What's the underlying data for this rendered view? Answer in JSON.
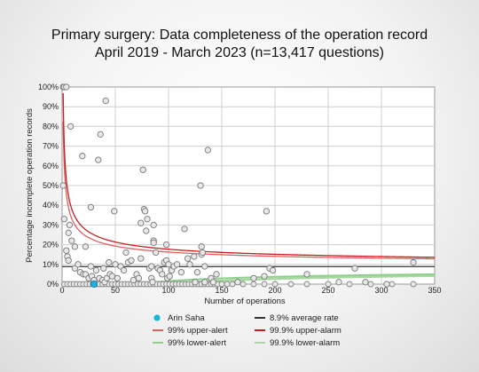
{
  "chart_data": {
    "type": "scatter",
    "title": "Primary surgery: Data completeness of the operation record",
    "subtitle": "April 2019 - March 2023 (n=13,417 questions)",
    "xlabel": "Number of operations",
    "ylabel": "Percentage incomplete operation records",
    "xlim": [
      0,
      350
    ],
    "ylim": [
      0,
      100
    ],
    "xticks": [
      "0",
      "50",
      "100",
      "150",
      "200",
      "250",
      "300",
      "350"
    ],
    "yticks": [
      "0%",
      "10%",
      "20%",
      "30%",
      "40%",
      "50%",
      "60%",
      "70%",
      "80%",
      "90%",
      "100%"
    ],
    "grid": true,
    "legend_position": "bottom",
    "average_rate": 8.9,
    "highlight_point": {
      "name": "Arin Saha",
      "x": 30,
      "y": 0
    },
    "points": [
      [
        1,
        100
      ],
      [
        2,
        100
      ],
      [
        4,
        100
      ],
      [
        1,
        50
      ],
      [
        2,
        33
      ],
      [
        4,
        17
      ],
      [
        5,
        14
      ],
      [
        6,
        12
      ],
      [
        6,
        26
      ],
      [
        7,
        30
      ],
      [
        8,
        80
      ],
      [
        9,
        22
      ],
      [
        12,
        19
      ],
      [
        12,
        8
      ],
      [
        15,
        10
      ],
      [
        17,
        6
      ],
      [
        19,
        65
      ],
      [
        20,
        5
      ],
      [
        22,
        5
      ],
      [
        22,
        19
      ],
      [
        25,
        3
      ],
      [
        27,
        9
      ],
      [
        27,
        39
      ],
      [
        28,
        4
      ],
      [
        30,
        2
      ],
      [
        32,
        7
      ],
      [
        34,
        63
      ],
      [
        35,
        3
      ],
      [
        36,
        76
      ],
      [
        38,
        2
      ],
      [
        39,
        8
      ],
      [
        40,
        1
      ],
      [
        41,
        93
      ],
      [
        42,
        3
      ],
      [
        44,
        11
      ],
      [
        45,
        5
      ],
      [
        47,
        4
      ],
      [
        49,
        37
      ],
      [
        50,
        10
      ],
      [
        52,
        3
      ],
      [
        55,
        9
      ],
      [
        58,
        7
      ],
      [
        60,
        16
      ],
      [
        62,
        11
      ],
      [
        65,
        12
      ],
      [
        67,
        2
      ],
      [
        70,
        5
      ],
      [
        72,
        3
      ],
      [
        74,
        31
      ],
      [
        74,
        13
      ],
      [
        76,
        58
      ],
      [
        77,
        38
      ],
      [
        78,
        37
      ],
      [
        79,
        27
      ],
      [
        80,
        33
      ],
      [
        82,
        8
      ],
      [
        84,
        3
      ],
      [
        84,
        9
      ],
      [
        85,
        1
      ],
      [
        86,
        30
      ],
      [
        86,
        22
      ],
      [
        86,
        21
      ],
      [
        88,
        16
      ],
      [
        90,
        8
      ],
      [
        92,
        7
      ],
      [
        94,
        5
      ],
      [
        96,
        11
      ],
      [
        98,
        12
      ],
      [
        98,
        20
      ],
      [
        99,
        3
      ],
      [
        100,
        10
      ],
      [
        101,
        4
      ],
      [
        103,
        7
      ],
      [
        105,
        9
      ],
      [
        108,
        10
      ],
      [
        112,
        6
      ],
      [
        115,
        28
      ],
      [
        118,
        13
      ],
      [
        120,
        10
      ],
      [
        124,
        14
      ],
      [
        125,
        1
      ],
      [
        127,
        6
      ],
      [
        130,
        50
      ],
      [
        131,
        19
      ],
      [
        131,
        15
      ],
      [
        132,
        16
      ],
      [
        134,
        9
      ],
      [
        134,
        1
      ],
      [
        137,
        68
      ],
      [
        140,
        3
      ],
      [
        142,
        1
      ],
      [
        145,
        5
      ],
      [
        165,
        1
      ],
      [
        180,
        3
      ],
      [
        190,
        4
      ],
      [
        192,
        37
      ],
      [
        195,
        8
      ],
      [
        198,
        7
      ],
      [
        230,
        5
      ],
      [
        260,
        1
      ],
      [
        275,
        8
      ],
      [
        285,
        1
      ],
      [
        305,
        0
      ],
      [
        330,
        11
      ]
    ],
    "low_points_x": [
      2,
      5,
      8,
      11,
      14,
      17,
      20,
      23,
      26,
      29,
      32,
      35,
      38,
      41,
      44,
      47,
      50,
      53,
      56,
      59,
      62,
      65,
      68,
      71,
      74,
      77,
      80,
      83,
      86,
      89,
      92,
      95,
      98,
      101,
      104,
      107,
      110,
      113,
      116,
      119,
      122,
      125,
      128,
      131,
      134,
      137,
      140,
      143,
      146,
      150,
      155,
      160,
      170,
      180,
      190,
      200,
      215,
      230,
      250,
      270,
      290,
      310,
      330
    ],
    "legend": [
      {
        "label": "Arin Saha",
        "kind": "point",
        "color": "#1ab4dc"
      },
      {
        "label": "8.9% average rate",
        "kind": "line",
        "color": "#333333"
      },
      {
        "label": "99% upper-alert",
        "kind": "line",
        "color": "#e06060"
      },
      {
        "label": "99.9% upper-alarm",
        "kind": "line",
        "color": "#c81e1e"
      },
      {
        "label": "99% lower-alert",
        "kind": "line",
        "color": "#8fd08f"
      },
      {
        "label": "99.9% lower-alarm",
        "kind": "line",
        "color": "#a8d8a0"
      }
    ]
  }
}
